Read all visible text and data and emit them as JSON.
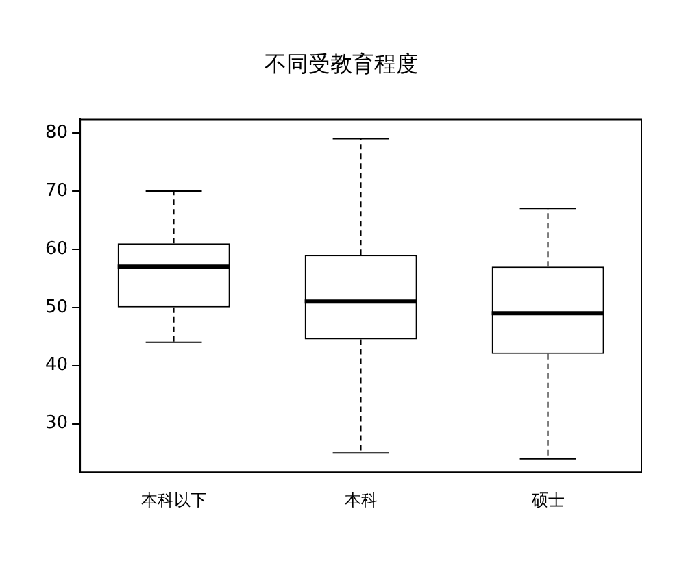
{
  "chart_data": {
    "type": "box",
    "title": "不同受教育程度",
    "categories": [
      "本科以下",
      "本科",
      "硕士"
    ],
    "boxes": [
      {
        "low": 44,
        "q1": 50,
        "median": 57,
        "q3": 61,
        "high": 70
      },
      {
        "low": 25,
        "q1": 44.5,
        "median": 51,
        "q3": 59,
        "high": 79
      },
      {
        "low": 24,
        "q1": 42,
        "median": 49,
        "q3": 57,
        "high": 67
      }
    ],
    "ylim": [
      21.7,
      82.3
    ],
    "yticks": [
      30,
      40,
      50,
      60,
      70,
      80
    ],
    "grid": false,
    "legend": false
  }
}
